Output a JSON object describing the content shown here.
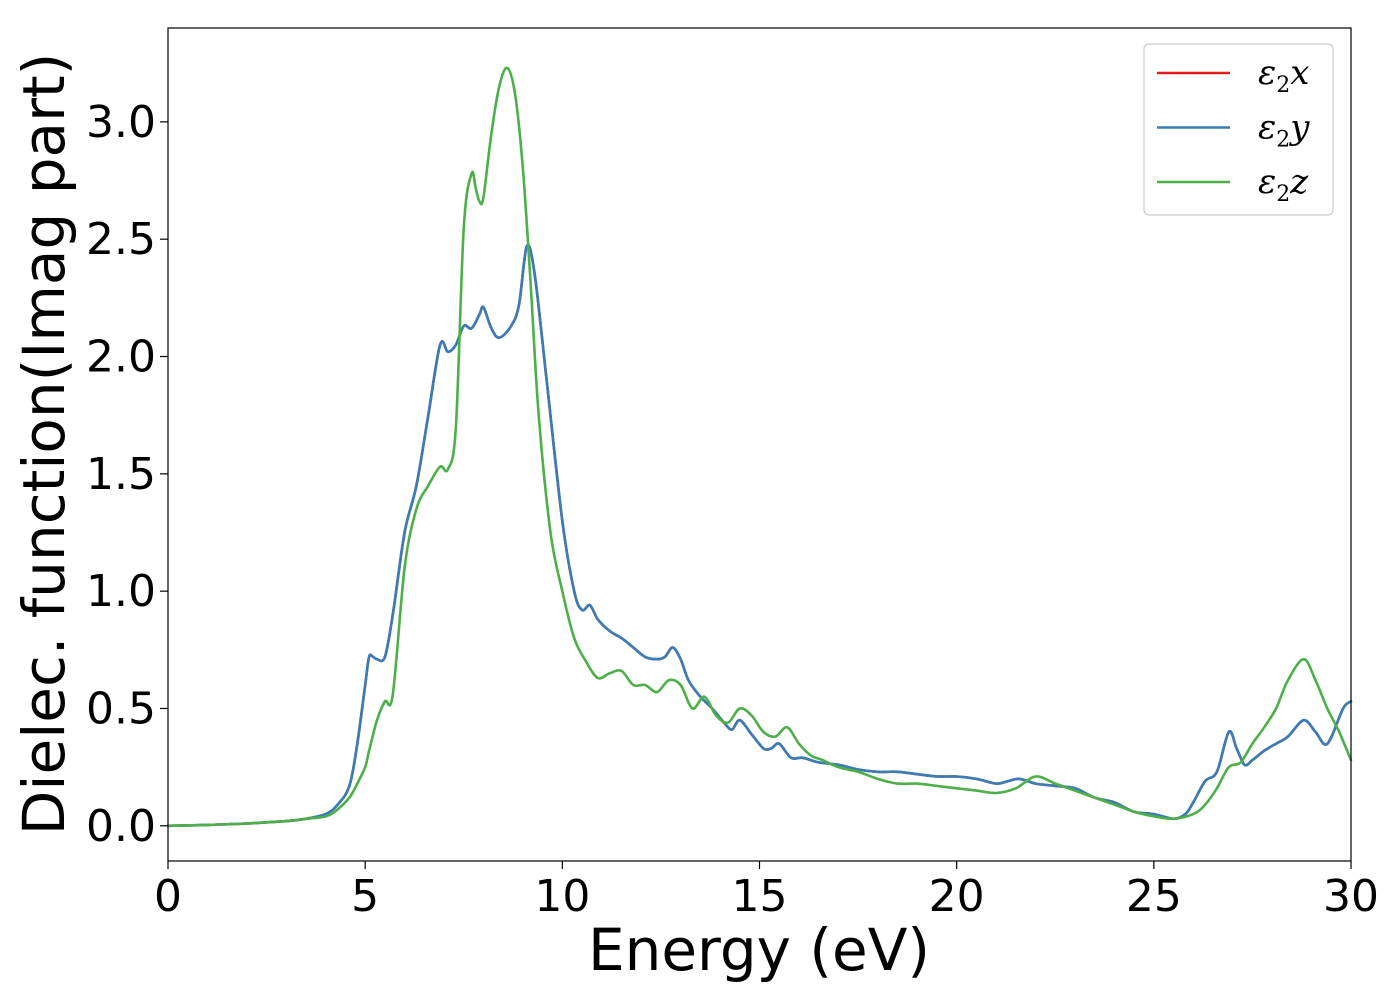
{
  "chart_data": {
    "type": "line",
    "xlabel": "Energy (eV)",
    "ylabel": "Dielec. function(Imag part)",
    "xlim": [
      0,
      30
    ],
    "ylim": [
      -0.15,
      3.4
    ],
    "xticks": [
      0,
      5,
      10,
      15,
      20,
      25,
      30
    ],
    "xtick_labels": [
      "0",
      "5",
      "10",
      "15",
      "20",
      "25",
      "30"
    ],
    "yticks": [
      0.0,
      0.5,
      1.0,
      1.5,
      2.0,
      2.5,
      3.0
    ],
    "ytick_labels": [
      "0.0",
      "0.5",
      "1.0",
      "1.5",
      "2.0",
      "2.5",
      "3.0"
    ],
    "grid": false,
    "legend_position": "top-right",
    "series": [
      {
        "name": "ε2x",
        "legend_main": "ε",
        "legend_sub": "2",
        "legend_var": "x",
        "color": "#e41a1c",
        "x": [
          0,
          1,
          2,
          3,
          3.5,
          4,
          4.3,
          4.6,
          4.8,
          5,
          5.1,
          5.2,
          5.3,
          5.5,
          5.7,
          6,
          6.3,
          6.6,
          6.9,
          7.1,
          7.3,
          7.5,
          7.7,
          7.9,
          8.0,
          8.2,
          8.4,
          8.7,
          8.9,
          9.1,
          9.3,
          9.6,
          10,
          10.3,
          10.5,
          10.7,
          10.9,
          11.2,
          11.5,
          11.8,
          12.1,
          12.4,
          12.6,
          12.8,
          13,
          13.2,
          13.5,
          13.8,
          14.1,
          14.3,
          14.5,
          14.8,
          15.1,
          15.3,
          15.5,
          15.8,
          16.1,
          16.5,
          17,
          17.5,
          18,
          18.5,
          19,
          19.5,
          20,
          20.5,
          21,
          21.3,
          21.6,
          22,
          22.5,
          23,
          23.5,
          24,
          24.5,
          25,
          25.5,
          25.8,
          26,
          26.3,
          26.6,
          26.9,
          27.1,
          27.3,
          27.5,
          27.8,
          28.1,
          28.4,
          28.8,
          29.1,
          29.4,
          29.8,
          30
        ],
        "y": [
          0,
          0.004,
          0.01,
          0.02,
          0.03,
          0.05,
          0.09,
          0.17,
          0.35,
          0.6,
          0.72,
          0.72,
          0.71,
          0.72,
          0.9,
          1.25,
          1.45,
          1.75,
          2.05,
          2.02,
          2.05,
          2.13,
          2.12,
          2.18,
          2.21,
          2.12,
          2.08,
          2.13,
          2.22,
          2.47,
          2.35,
          1.9,
          1.3,
          1.0,
          0.92,
          0.94,
          0.88,
          0.83,
          0.8,
          0.76,
          0.72,
          0.71,
          0.72,
          0.76,
          0.71,
          0.62,
          0.55,
          0.5,
          0.44,
          0.41,
          0.45,
          0.39,
          0.33,
          0.33,
          0.35,
          0.29,
          0.29,
          0.27,
          0.26,
          0.24,
          0.23,
          0.23,
          0.22,
          0.21,
          0.21,
          0.2,
          0.18,
          0.19,
          0.2,
          0.18,
          0.17,
          0.16,
          0.12,
          0.1,
          0.06,
          0.05,
          0.03,
          0.05,
          0.1,
          0.19,
          0.23,
          0.4,
          0.33,
          0.26,
          0.28,
          0.32,
          0.35,
          0.38,
          0.45,
          0.4,
          0.35,
          0.5,
          0.53
        ]
      },
      {
        "name": "ε2y",
        "legend_main": "ε",
        "legend_sub": "2",
        "legend_var": "y",
        "color": "#377eb8",
        "x": [
          0,
          1,
          2,
          3,
          3.5,
          4,
          4.3,
          4.6,
          4.8,
          5,
          5.1,
          5.2,
          5.3,
          5.5,
          5.7,
          6,
          6.3,
          6.6,
          6.9,
          7.1,
          7.3,
          7.5,
          7.7,
          7.9,
          8.0,
          8.2,
          8.4,
          8.7,
          8.9,
          9.1,
          9.3,
          9.6,
          10,
          10.3,
          10.5,
          10.7,
          10.9,
          11.2,
          11.5,
          11.8,
          12.1,
          12.4,
          12.6,
          12.8,
          13,
          13.2,
          13.5,
          13.8,
          14.1,
          14.3,
          14.5,
          14.8,
          15.1,
          15.3,
          15.5,
          15.8,
          16.1,
          16.5,
          17,
          17.5,
          18,
          18.5,
          19,
          19.5,
          20,
          20.5,
          21,
          21.3,
          21.6,
          22,
          22.5,
          23,
          23.5,
          24,
          24.5,
          25,
          25.5,
          25.8,
          26,
          26.3,
          26.6,
          26.9,
          27.1,
          27.3,
          27.5,
          27.8,
          28.1,
          28.4,
          28.8,
          29.1,
          29.4,
          29.8,
          30
        ],
        "y": [
          0,
          0.004,
          0.01,
          0.02,
          0.03,
          0.05,
          0.09,
          0.17,
          0.35,
          0.6,
          0.72,
          0.72,
          0.71,
          0.72,
          0.9,
          1.25,
          1.45,
          1.75,
          2.05,
          2.02,
          2.05,
          2.13,
          2.12,
          2.18,
          2.21,
          2.12,
          2.08,
          2.13,
          2.22,
          2.47,
          2.35,
          1.9,
          1.3,
          1.0,
          0.92,
          0.94,
          0.88,
          0.83,
          0.8,
          0.76,
          0.72,
          0.71,
          0.72,
          0.76,
          0.71,
          0.62,
          0.55,
          0.5,
          0.44,
          0.41,
          0.45,
          0.39,
          0.33,
          0.33,
          0.35,
          0.29,
          0.29,
          0.27,
          0.26,
          0.24,
          0.23,
          0.23,
          0.22,
          0.21,
          0.21,
          0.2,
          0.18,
          0.19,
          0.2,
          0.18,
          0.17,
          0.16,
          0.12,
          0.1,
          0.06,
          0.05,
          0.03,
          0.05,
          0.1,
          0.19,
          0.23,
          0.4,
          0.33,
          0.26,
          0.28,
          0.32,
          0.35,
          0.38,
          0.45,
          0.4,
          0.35,
          0.5,
          0.53
        ]
      },
      {
        "name": "ε2z",
        "legend_main": "ε",
        "legend_sub": "2",
        "legend_var": "z",
        "color": "#4daf4a",
        "x": [
          0,
          1,
          2,
          3,
          3.5,
          4,
          4.3,
          4.6,
          4.8,
          5,
          5.1,
          5.3,
          5.5,
          5.7,
          6,
          6.3,
          6.6,
          6.9,
          7.1,
          7.3,
          7.5,
          7.7,
          7.8,
          7.9,
          8.0,
          8.2,
          8.4,
          8.6,
          8.8,
          9.0,
          9.2,
          9.4,
          9.7,
          10,
          10.3,
          10.6,
          10.9,
          11.2,
          11.5,
          11.8,
          12.1,
          12.4,
          12.7,
          13,
          13.3,
          13.6,
          13.9,
          14.2,
          14.5,
          14.8,
          15.1,
          15.4,
          15.7,
          16.0,
          16.3,
          16.6,
          17,
          17.5,
          18,
          18.5,
          19,
          19.5,
          20,
          20.5,
          21,
          21.5,
          22,
          22.5,
          23,
          23.5,
          24,
          24.5,
          25,
          25.5,
          26,
          26.3,
          26.6,
          26.9,
          27.2,
          27.5,
          27.8,
          28.1,
          28.4,
          28.8,
          29.1,
          29.4,
          29.7,
          30
        ],
        "y": [
          0,
          0.004,
          0.01,
          0.02,
          0.03,
          0.04,
          0.07,
          0.12,
          0.18,
          0.25,
          0.32,
          0.45,
          0.53,
          0.56,
          1.1,
          1.35,
          1.45,
          1.53,
          1.52,
          1.7,
          2.55,
          2.78,
          2.72,
          2.66,
          2.68,
          2.95,
          3.15,
          3.23,
          3.12,
          2.8,
          2.3,
          1.75,
          1.25,
          1.0,
          0.8,
          0.7,
          0.63,
          0.65,
          0.66,
          0.6,
          0.6,
          0.57,
          0.62,
          0.6,
          0.5,
          0.55,
          0.47,
          0.44,
          0.5,
          0.47,
          0.4,
          0.38,
          0.42,
          0.35,
          0.3,
          0.28,
          0.25,
          0.23,
          0.2,
          0.18,
          0.18,
          0.17,
          0.16,
          0.15,
          0.14,
          0.16,
          0.21,
          0.18,
          0.15,
          0.12,
          0.09,
          0.06,
          0.04,
          0.03,
          0.05,
          0.09,
          0.16,
          0.25,
          0.27,
          0.35,
          0.42,
          0.5,
          0.62,
          0.71,
          0.62,
          0.5,
          0.4,
          0.28
        ]
      }
    ]
  }
}
